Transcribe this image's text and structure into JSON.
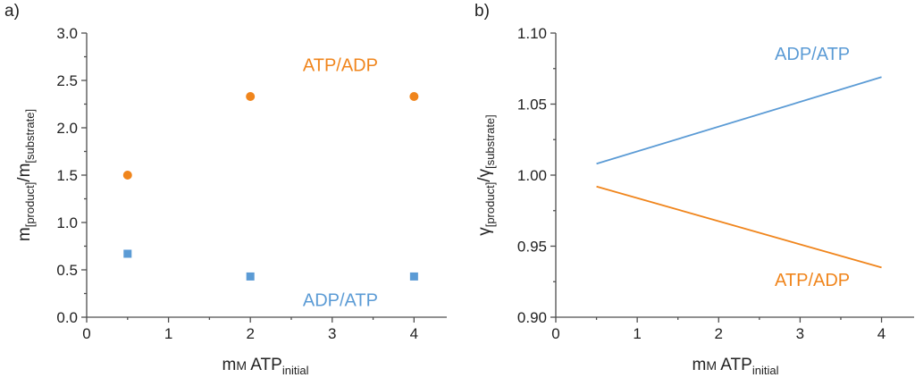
{
  "colors": {
    "orange": "#f0851c",
    "blue": "#5b9bd5"
  },
  "chart_data": [
    {
      "type": "scatter",
      "panel_label": "a)",
      "x_label": {
        "main": "m",
        "small_caps": "M",
        "rest": " ATP",
        "subscript": "initial"
      },
      "y_label": {
        "m1": "m",
        "sub1": "[product]",
        "slash": "/m",
        "sub2": "[substrate]"
      },
      "xlim": [
        0,
        4.4
      ],
      "ylim": [
        0,
        3.0
      ],
      "xticks": [
        0,
        1,
        2,
        3,
        4
      ],
      "xtick_labels": [
        "0",
        "1",
        "2",
        "3",
        "4"
      ],
      "yticks": [
        0,
        0.5,
        1.0,
        1.5,
        2.0,
        2.5,
        3.0
      ],
      "ytick_labels": [
        "0.0",
        "0.5",
        "1.0",
        "1.5",
        "2.0",
        "2.5",
        "3.0"
      ],
      "x_positions": [
        0.5,
        2,
        4
      ],
      "series": [
        {
          "name": "ATP/ADP",
          "marker": "circle",
          "color": "#f0851c",
          "x": [
            0.5,
            2,
            4
          ],
          "values": [
            1.5,
            2.33,
            2.33
          ]
        },
        {
          "name": "ADP/ATP",
          "marker": "square",
          "color": "#5b9bd5",
          "x": [
            0.5,
            2,
            4
          ],
          "values": [
            0.67,
            0.43,
            0.43
          ]
        }
      ],
      "annotations": [
        {
          "text": "ATP/ADP",
          "color": "#f0851c",
          "at": [
            3.1,
            2.6
          ]
        },
        {
          "text": "ADP/ATP",
          "color": "#5b9bd5",
          "at": [
            3.1,
            0.12
          ]
        }
      ]
    },
    {
      "type": "line",
      "panel_label": "b)",
      "x_label": {
        "main": "m",
        "small_caps": "M",
        "rest": " ATP",
        "subscript": "initial"
      },
      "y_label": {
        "g1": "γ",
        "sub1": "[product]",
        "slash": "/γ",
        "sub2": "[substrate]"
      },
      "xlim": [
        0,
        4.4
      ],
      "ylim": [
        0.9,
        1.1
      ],
      "xticks": [
        0,
        1,
        2,
        3,
        4
      ],
      "xtick_labels": [
        "0",
        "1",
        "2",
        "3",
        "4"
      ],
      "yticks": [
        0.9,
        0.95,
        1.0,
        1.05,
        1.1
      ],
      "ytick_labels": [
        "0.90",
        "0.95",
        "1.00",
        "1.05",
        "1.10"
      ],
      "series": [
        {
          "name": "ADP/ATP",
          "color": "#5b9bd5",
          "x": [
            0.5,
            4
          ],
          "values": [
            1.008,
            1.069
          ]
        },
        {
          "name": "ATP/ADP",
          "color": "#f0851c",
          "x": [
            0.5,
            4
          ],
          "values": [
            0.992,
            0.935
          ]
        }
      ],
      "annotations": [
        {
          "text": "ADP/ATP",
          "color": "#5b9bd5",
          "at": [
            3.15,
            1.081
          ]
        },
        {
          "text": "ATP/ADP",
          "color": "#f0851c",
          "at": [
            3.15,
            0.922
          ]
        }
      ]
    }
  ]
}
